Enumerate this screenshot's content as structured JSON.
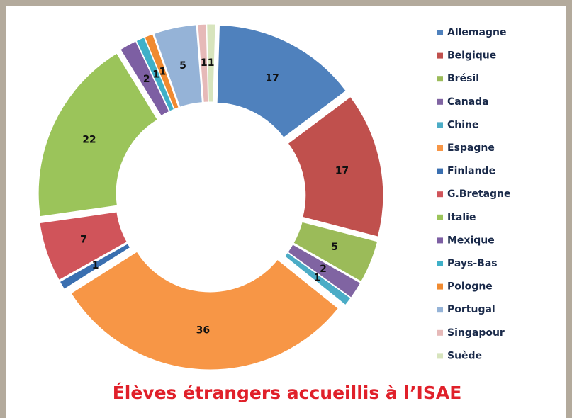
{
  "chart_data": {
    "type": "donut",
    "title": "Élèves étrangers accueillis à l’ISAE",
    "categories": [
      "Allemagne",
      "Belgique",
      "Brésil",
      "Canada",
      "Chine",
      "Espagne",
      "Finlande",
      "G.Bretagne",
      "Italie",
      "Mexique",
      "Pays-Bas",
      "Pologne",
      "Portugal",
      "Singapour",
      "Suède"
    ],
    "values": [
      17,
      17,
      5,
      2,
      1,
      36,
      1,
      7,
      22,
      2,
      1,
      1,
      5,
      1,
      1
    ],
    "colors": [
      "#4f81bd",
      "#c0504d",
      "#9bbb59",
      "#8064a2",
      "#4bacc6",
      "#f79646",
      "#3a6fb0",
      "#d0545a",
      "#9bc45a",
      "#7d5fa3",
      "#3fb0c8",
      "#f08a30",
      "#95b3d7",
      "#e6b9b8",
      "#d7e4bd"
    ],
    "legend": "right"
  }
}
